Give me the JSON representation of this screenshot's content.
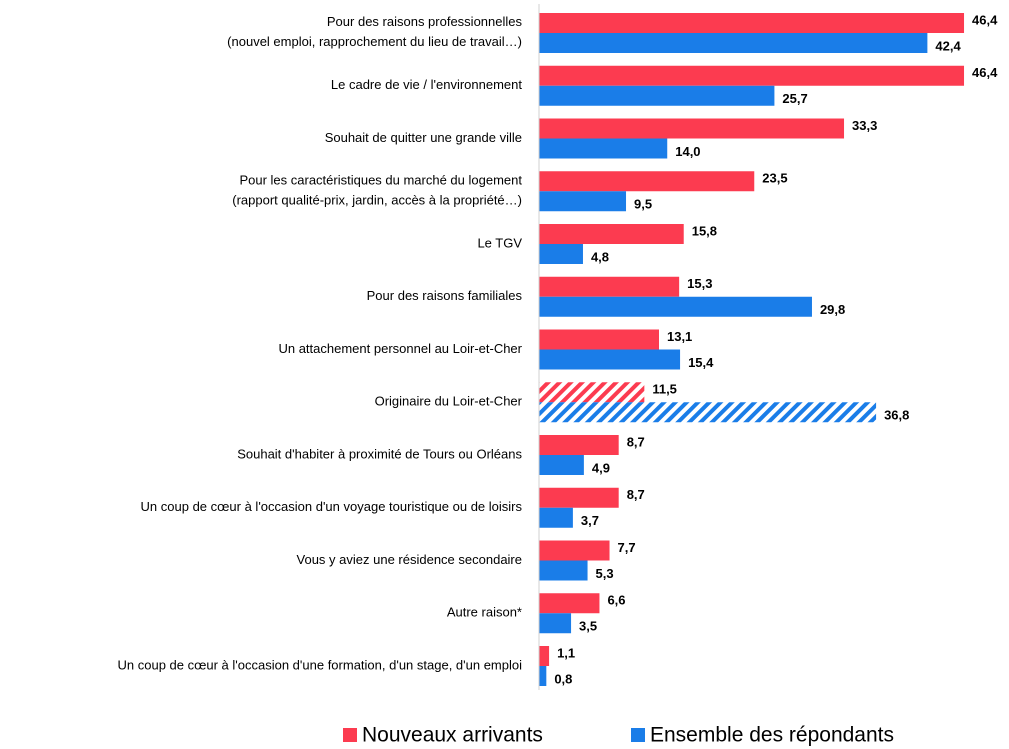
{
  "chart_data": {
    "type": "bar",
    "orientation": "horizontal",
    "categories": [
      "Pour des raisons professionnelles\n(nouvel emploi, rapprochement du lieu de travail…)",
      "Le cadre de vie / l'environnement",
      "Souhait de quitter une grande ville",
      "Pour les caractéristiques du marché du logement\n(rapport qualité-prix, jardin, accès à la propriété…)",
      "Le TGV",
      "Pour des raisons familiales",
      "Un attachement personnel au Loir-et-Cher",
      "Originaire du Loir-et-Cher",
      "Souhait d'habiter à proximité de Tours ou Orléans",
      "Un coup de cœur à l'occasion d'un voyage touristique ou de loisirs",
      "Vous y aviez une résidence secondaire",
      "Autre raison*",
      "Un coup de cœur à l'occasion d'une formation, d'un stage, d'un emploi"
    ],
    "series": [
      {
        "name": "Nouveaux arrivants",
        "color": "#fc3b50",
        "values": [
          46.4,
          46.4,
          33.3,
          23.5,
          15.8,
          15.3,
          13.1,
          11.5,
          8.7,
          8.7,
          7.7,
          6.6,
          1.1
        ],
        "value_labels": [
          "46,4",
          "46,4",
          "33,3",
          "23,5",
          "15,8",
          "15,3",
          "13,1",
          "11,5",
          "8,7",
          "8,7",
          "7,7",
          "6,6",
          "1,1"
        ]
      },
      {
        "name": "Ensemble des répondants",
        "color": "#1a7de8",
        "values": [
          42.4,
          25.7,
          14.0,
          9.5,
          4.8,
          29.8,
          15.4,
          36.8,
          4.9,
          3.7,
          5.3,
          3.5,
          0.8
        ],
        "value_labels": [
          "42,4",
          "25,7",
          "14,0",
          "9,5",
          "4,8",
          "29,8",
          "15,4",
          "36,8",
          "4,9",
          "3,7",
          "5,3",
          "3,5",
          "0,8"
        ]
      }
    ],
    "hatched_category": 7,
    "xlim": [
      0,
      50
    ],
    "legend": "bottom"
  }
}
